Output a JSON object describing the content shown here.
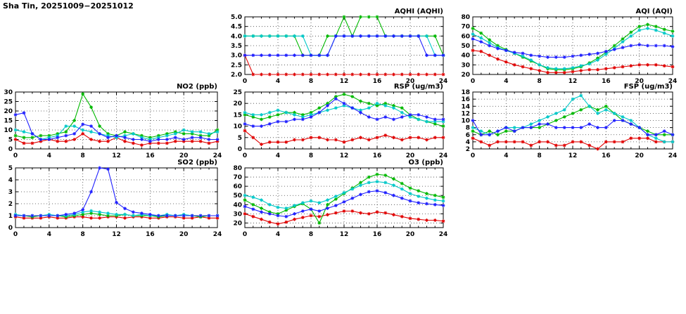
{
  "page_title": "Sha Tin, 20251009−20251012",
  "colors": {
    "red": "#e00000",
    "green": "#00b800",
    "cyan": "#00c8c8",
    "blue": "#2020ff"
  },
  "hours": [
    0,
    1,
    2,
    3,
    4,
    5,
    6,
    7,
    8,
    9,
    10,
    11,
    12,
    13,
    14,
    15,
    16,
    17,
    18,
    19,
    20,
    21,
    22,
    23,
    24
  ],
  "chart_data": [
    {
      "id": "aqhi",
      "type": "line",
      "title": "AQHI (AQHI)",
      "xlabel": "",
      "ylabel": "",
      "xlim": [
        0,
        24
      ],
      "xtick_step": 4,
      "ylim": [
        2,
        5
      ],
      "ytick_step": 0.5,
      "ydecimals": 1,
      "grid": true,
      "legend": "none",
      "series": [
        {
          "name": "red",
          "values": [
            3,
            2,
            2,
            2,
            2,
            2,
            2,
            2,
            2,
            2,
            2,
            2,
            2,
            2,
            2,
            2,
            2,
            2,
            2,
            2,
            2,
            2,
            2,
            2,
            2
          ]
        },
        {
          "name": "green",
          "values": [
            4,
            4,
            4,
            4,
            4,
            4,
            4,
            3,
            3,
            3,
            4,
            4,
            5,
            4,
            5,
            5,
            5,
            4,
            4,
            4,
            4,
            4,
            4,
            4,
            3
          ]
        },
        {
          "name": "cyan",
          "values": [
            4,
            4,
            4,
            4,
            4,
            4,
            4,
            4,
            3,
            3,
            3,
            4,
            4,
            4,
            4,
            4,
            4,
            4,
            4,
            4,
            4,
            4,
            4,
            3,
            3
          ]
        },
        {
          "name": "blue",
          "values": [
            3,
            3,
            3,
            3,
            3,
            3,
            3,
            3,
            3,
            3,
            3,
            4,
            4,
            4,
            4,
            4,
            4,
            4,
            4,
            4,
            4,
            4,
            3,
            3,
            3
          ]
        }
      ]
    },
    {
      "id": "aqi",
      "type": "line",
      "title": "AQI (AQI)",
      "xlabel": "",
      "ylabel": "",
      "xlim": [
        0,
        24
      ],
      "xtick_step": 4,
      "ylim": [
        20,
        80
      ],
      "ytick_step": 10,
      "ydecimals": 0,
      "grid": true,
      "legend": "none",
      "series": [
        {
          "name": "red",
          "values": [
            45,
            44,
            40,
            36,
            33,
            30,
            28,
            26,
            24,
            22,
            22,
            22,
            23,
            24,
            25,
            25,
            26,
            27,
            28,
            29,
            30,
            30,
            30,
            29,
            28
          ]
        },
        {
          "name": "green",
          "values": [
            68,
            63,
            56,
            50,
            46,
            42,
            38,
            34,
            30,
            26,
            25,
            25,
            26,
            28,
            32,
            37,
            43,
            50,
            57,
            64,
            70,
            72,
            70,
            67,
            65
          ]
        },
        {
          "name": "cyan",
          "values": [
            62,
            58,
            53,
            48,
            45,
            42,
            39,
            35,
            30,
            27,
            26,
            26,
            27,
            29,
            31,
            35,
            41,
            47,
            54,
            60,
            66,
            68,
            66,
            63,
            60
          ]
        },
        {
          "name": "blue",
          "values": [
            57,
            54,
            50,
            47,
            45,
            43,
            42,
            40,
            39,
            38,
            38,
            38,
            39,
            40,
            41,
            42,
            44,
            46,
            48,
            50,
            51,
            50,
            50,
            50,
            49
          ]
        }
      ]
    },
    {
      "id": "no2",
      "type": "line",
      "title": "NO2 (ppb)",
      "xlabel": "",
      "ylabel": "",
      "xlim": [
        0,
        24
      ],
      "xtick_step": 4,
      "ylim": [
        0,
        30
      ],
      "ytick_step": 5,
      "ydecimals": 0,
      "grid": true,
      "legend": "none",
      "series": [
        {
          "name": "red",
          "values": [
            5,
            3,
            3,
            4,
            5,
            4,
            4,
            5,
            8,
            5,
            4,
            4,
            6,
            4,
            3,
            2,
            3,
            3,
            3,
            4,
            4,
            4,
            4,
            3,
            4
          ]
        },
        {
          "name": "green",
          "values": [
            7,
            6,
            6,
            7,
            7,
            8,
            9,
            15,
            29,
            22,
            12,
            8,
            7,
            9,
            8,
            7,
            6,
            7,
            8,
            9,
            8,
            8,
            7,
            7,
            10
          ]
        },
        {
          "name": "cyan",
          "values": [
            10,
            9,
            8,
            5,
            6,
            7,
            12,
            12,
            10,
            9,
            8,
            7,
            6,
            7,
            8,
            6,
            5,
            6,
            7,
            8,
            10,
            9,
            9,
            8,
            9
          ]
        },
        {
          "name": "blue",
          "values": [
            18,
            19,
            8,
            5,
            5,
            6,
            7,
            8,
            13,
            12,
            8,
            6,
            7,
            6,
            5,
            5,
            4,
            5,
            5,
            6,
            5,
            6,
            6,
            5,
            5
          ]
        }
      ]
    },
    {
      "id": "rsp",
      "type": "line",
      "title": "RSP (ug/m3)",
      "xlabel": "",
      "ylabel": "",
      "xlim": [
        0,
        24
      ],
      "xtick_step": 4,
      "ylim": [
        0,
        25
      ],
      "ytick_step": 5,
      "ydecimals": 0,
      "grid": true,
      "legend": "none",
      "series": [
        {
          "name": "red",
          "values": [
            8,
            5,
            2,
            3,
            3,
            3,
            4,
            4,
            5,
            5,
            4,
            4,
            3,
            4,
            5,
            4,
            5,
            6,
            5,
            4,
            5,
            5,
            4,
            5,
            5
          ]
        },
        {
          "name": "green",
          "values": [
            15,
            14,
            13,
            14,
            15,
            16,
            16,
            15,
            16,
            18,
            20,
            23,
            24,
            23,
            21,
            20,
            19,
            20,
            19,
            18,
            15,
            13,
            12,
            11,
            10
          ]
        },
        {
          "name": "cyan",
          "values": [
            16,
            15,
            15,
            16,
            17,
            16,
            15,
            14,
            15,
            16,
            17,
            18,
            19,
            18,
            17,
            18,
            20,
            19,
            18,
            16,
            14,
            13,
            12,
            12,
            12
          ]
        },
        {
          "name": "blue",
          "values": [
            11,
            10,
            10,
            11,
            12,
            12,
            13,
            13,
            14,
            16,
            19,
            22,
            20,
            18,
            16,
            14,
            13,
            14,
            13,
            14,
            15,
            15,
            14,
            13,
            13
          ]
        }
      ]
    },
    {
      "id": "fsp",
      "type": "line",
      "title": "FSP (ug/m3)",
      "xlabel": "",
      "ylabel": "",
      "xlim": [
        0,
        24
      ],
      "xtick_step": 4,
      "ylim": [
        2,
        18
      ],
      "ytick_step": 2,
      "ydecimals": 0,
      "grid": true,
      "legend": "none",
      "series": [
        {
          "name": "red",
          "values": [
            5,
            4,
            3,
            4,
            4,
            4,
            4,
            3,
            4,
            4,
            3,
            3,
            4,
            4,
            3,
            2,
            4,
            4,
            4,
            5,
            5,
            5,
            4,
            4,
            4
          ]
        },
        {
          "name": "green",
          "values": [
            7,
            6,
            7,
            6,
            7,
            7,
            8,
            8,
            8,
            9,
            10,
            11,
            12,
            13,
            14,
            13,
            14,
            12,
            10,
            9,
            8,
            7,
            6,
            6,
            6
          ]
        },
        {
          "name": "cyan",
          "values": [
            8,
            7,
            6,
            7,
            8,
            8,
            8,
            9,
            10,
            11,
            12,
            13,
            16,
            17,
            14,
            12,
            13,
            12,
            11,
            10,
            8,
            6,
            5,
            4,
            4
          ]
        },
        {
          "name": "blue",
          "values": [
            10,
            6,
            6,
            7,
            8,
            7,
            8,
            8,
            9,
            9,
            8,
            8,
            8,
            8,
            9,
            8,
            8,
            10,
            10,
            9,
            8,
            6,
            6,
            7,
            6
          ]
        }
      ]
    },
    {
      "id": "so2",
      "type": "line",
      "title": "SO2 (ppb)",
      "xlabel": "",
      "ylabel": "",
      "xlim": [
        0,
        24
      ],
      "xtick_step": 4,
      "ylim": [
        0,
        5
      ],
      "ytick_step": 1,
      "ydecimals": 0,
      "grid": true,
      "legend": "none",
      "series": [
        {
          "name": "red",
          "values": [
            0.9,
            0.8,
            0.8,
            0.8,
            0.9,
            0.8,
            0.8,
            0.9,
            0.9,
            0.8,
            0.8,
            0.9,
            0.9,
            0.8,
            0.9,
            0.9,
            0.8,
            0.8,
            0.9,
            0.9,
            0.8,
            0.8,
            0.9,
            0.8,
            0.8
          ]
        },
        {
          "name": "green",
          "values": [
            1.0,
            1.0,
            0.9,
            1.0,
            1.0,
            1.0,
            0.9,
            1.0,
            1.1,
            1.2,
            1.1,
            1.0,
            1.0,
            1.1,
            1.0,
            1.0,
            1.0,
            0.9,
            1.0,
            1.0,
            1.0,
            1.0,
            0.9,
            1.0,
            1.0
          ]
        },
        {
          "name": "cyan",
          "values": [
            1.1,
            1.0,
            1.0,
            1.0,
            1.1,
            1.0,
            1.0,
            1.1,
            1.3,
            1.4,
            1.3,
            1.2,
            1.1,
            1.1,
            1.0,
            1.1,
            1.0,
            1.0,
            1.1,
            1.0,
            1.1,
            1.0,
            1.0,
            1.0,
            1.0
          ]
        },
        {
          "name": "blue",
          "values": [
            1.0,
            1.0,
            1.0,
            1.0,
            1.0,
            1.0,
            1.1,
            1.2,
            1.5,
            3.0,
            5.0,
            4.9,
            2.1,
            1.6,
            1.3,
            1.2,
            1.1,
            1.0,
            1.0,
            1.0,
            1.0,
            1.0,
            1.0,
            1.0,
            1.0
          ]
        }
      ]
    },
    {
      "id": "o3",
      "type": "line",
      "title": "O3 (ppb)",
      "xlabel": "",
      "ylabel": "",
      "xlim": [
        0,
        24
      ],
      "xtick_step": 4,
      "ylim": [
        15,
        80
      ],
      "ytick_step": 10,
      "ydecimals": 0,
      "grid": true,
      "legend": "none",
      "series": [
        {
          "name": "red",
          "values": [
            30,
            27,
            24,
            21,
            19,
            21,
            24,
            26,
            28,
            27,
            29,
            31,
            33,
            33,
            31,
            30,
            32,
            31,
            29,
            27,
            25,
            24,
            23,
            23,
            22
          ]
        },
        {
          "name": "green",
          "values": [
            45,
            40,
            36,
            32,
            30,
            34,
            38,
            41,
            35,
            20,
            40,
            46,
            52,
            58,
            64,
            70,
            73,
            72,
            68,
            63,
            58,
            55,
            52,
            50,
            48
          ]
        },
        {
          "name": "cyan",
          "values": [
            50,
            48,
            45,
            40,
            37,
            36,
            39,
            42,
            44,
            42,
            45,
            49,
            53,
            57,
            61,
            64,
            65,
            64,
            61,
            57,
            52,
            49,
            47,
            45,
            44
          ]
        },
        {
          "name": "blue",
          "values": [
            38,
            35,
            32,
            30,
            28,
            27,
            30,
            33,
            35,
            33,
            36,
            39,
            43,
            47,
            51,
            54,
            55,
            53,
            50,
            47,
            44,
            42,
            41,
            40,
            39
          ]
        }
      ]
    }
  ]
}
